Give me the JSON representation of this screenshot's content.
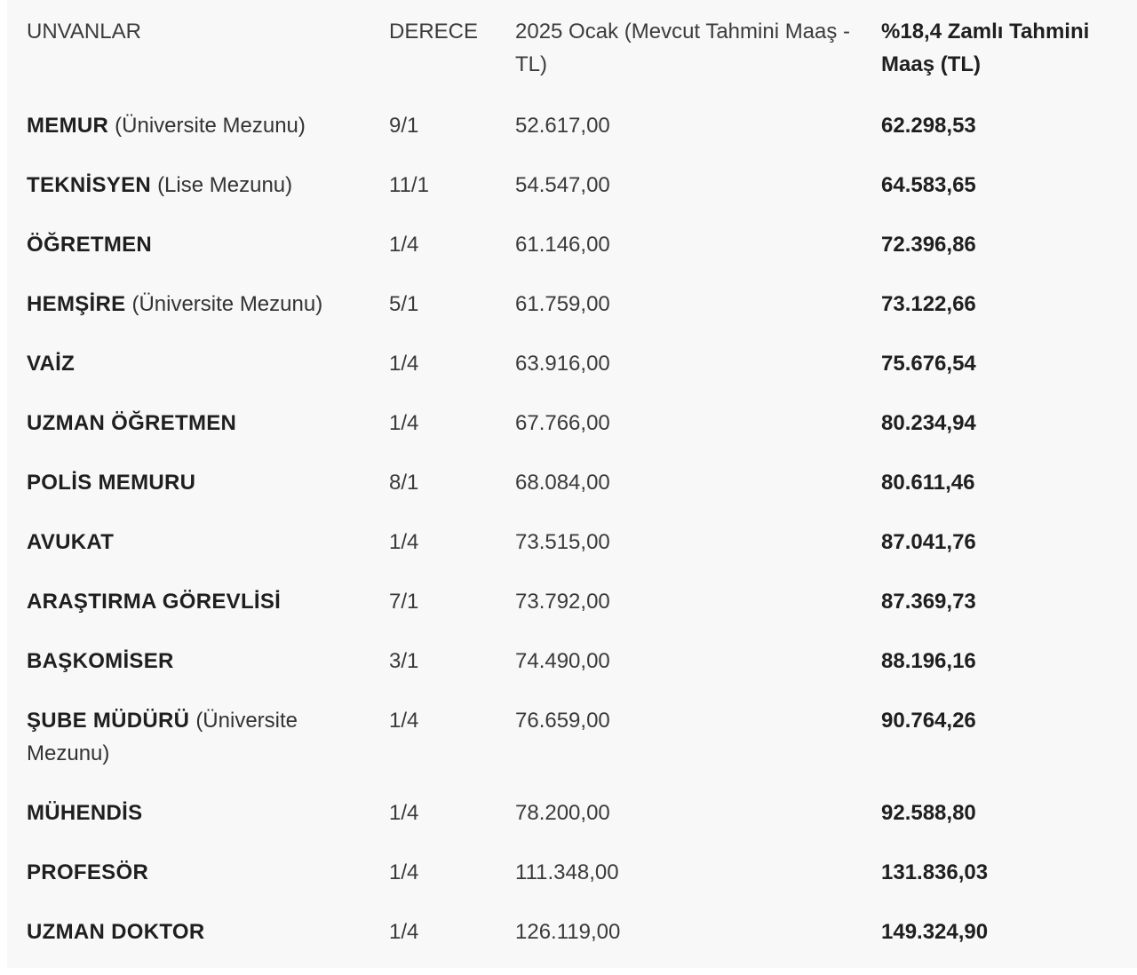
{
  "table": {
    "header": [
      "UNVANLAR",
      "DERECE",
      "2025 Ocak (Mevcut Tahmini Maaş - TL)",
      "%18,4 Zamlı Tahmini Maaş (TL)"
    ],
    "rows": [
      {
        "title": "MEMUR",
        "note": "(Üniversite Mezunu)",
        "grade": "9/1",
        "current": "52.617,00",
        "raised": "62.298,53"
      },
      {
        "title": "TEKNİSYEN",
        "note": "(Lise Mezunu)",
        "grade": "11/1",
        "current": "54.547,00",
        "raised": "64.583,65"
      },
      {
        "title": "ÖĞRETMEN",
        "grade": "1/4",
        "current": "61.146,00",
        "raised": "72.396,86"
      },
      {
        "title": "HEMŞİRE",
        "note": "(Üniversite Mezunu)",
        "grade": "5/1",
        "current": "61.759,00",
        "raised": "73.122,66"
      },
      {
        "title": "VAİZ",
        "grade": "1/4",
        "current": "63.916,00",
        "raised": "75.676,54"
      },
      {
        "title": "UZMAN ÖĞRETMEN",
        "grade": "1/4",
        "current": "67.766,00",
        "raised": "80.234,94"
      },
      {
        "title": "POLİS MEMURU",
        "grade": "8/1",
        "current": "68.084,00",
        "raised": "80.611,46"
      },
      {
        "title": "AVUKAT",
        "grade": "1/4",
        "current": "73.515,00",
        "raised": "87.041,76"
      },
      {
        "title": "ARAŞTIRMA GÖREVLİSİ",
        "grade": "7/1",
        "current": "73.792,00",
        "raised": "87.369,73"
      },
      {
        "title": "BAŞKOMİSER",
        "grade": "3/1",
        "current": "74.490,00",
        "raised": "88.196,16"
      },
      {
        "title": "ŞUBE MÜDÜRÜ",
        "note": "(Üniversite Mezunu)",
        "grade": "1/4",
        "current": "76.659,00",
        "raised": "90.764,26"
      },
      {
        "title": "MÜHENDİS",
        "grade": "1/4",
        "current": "78.200,00",
        "raised": "92.588,80"
      },
      {
        "title": "PROFESÖR",
        "grade": "1/4",
        "current": "111.348,00",
        "raised": "131.836,03"
      },
      {
        "title": "UZMAN DOKTOR",
        "grade": "1/4",
        "current": "126.119,00",
        "raised": "149.324,90"
      }
    ]
  }
}
